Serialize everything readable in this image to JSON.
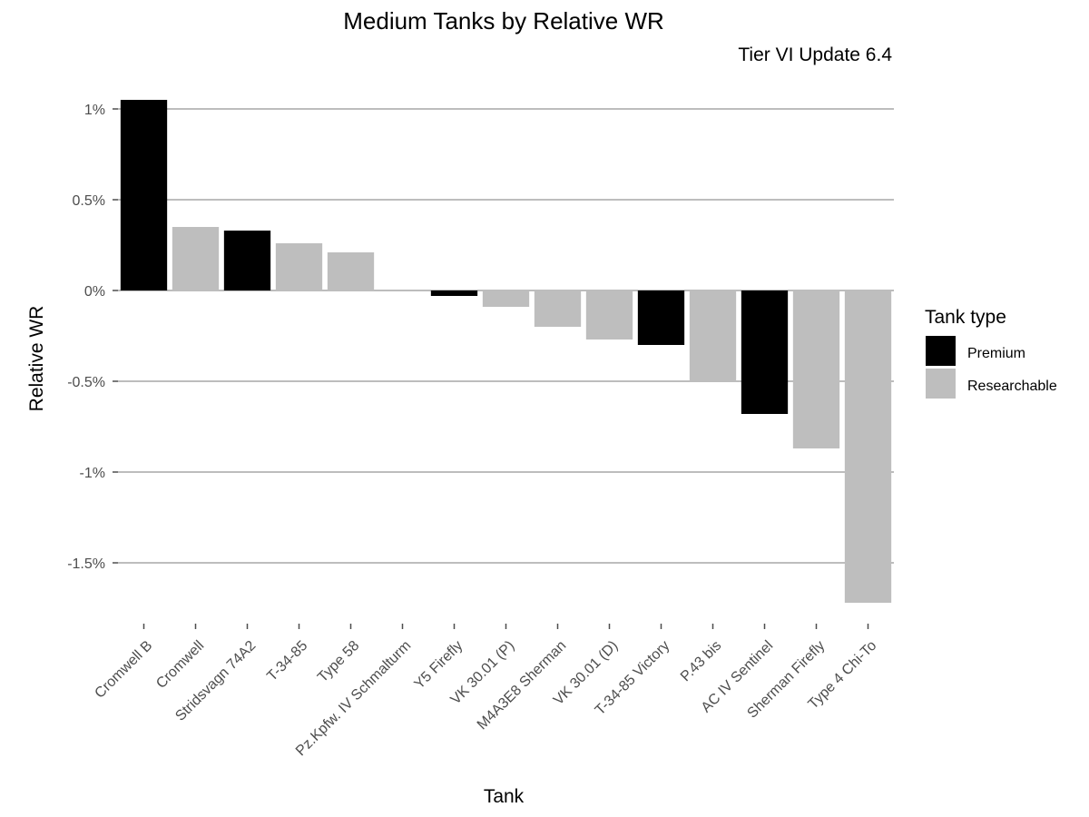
{
  "chart_data": {
    "type": "bar",
    "title": "Medium Tanks by Relative WR",
    "subtitle": "Tier VI Update 6.4",
    "xlabel": "Tank",
    "ylabel": "Relative WR",
    "ylim": [
      -1.8,
      1.1
    ],
    "yticks": [
      1,
      0.5,
      0,
      -0.5,
      -1,
      -1.5
    ],
    "ytick_labels": [
      "1%",
      "0.5%",
      "0%",
      "-0.5%",
      "-1%",
      "-1.5%"
    ],
    "grid": true,
    "legend": {
      "title": "Tank type",
      "placement": "right",
      "entries": [
        {
          "label": "Premium",
          "color": "#000000"
        },
        {
          "label": "Researchable",
          "color": "#bebebe"
        }
      ]
    },
    "categories": [
      "Cromwell B",
      "Cromwell",
      "Stridsvagn 74A2",
      "T-34-85",
      "Type 58",
      "Pz.Kpfw. IV Schmalturm",
      "Y5 Firefly",
      "VK 30.01 (P)",
      "M4A3E8 Sherman",
      "VK 30.01 (D)",
      "T-34-85 Victory",
      "P.43 bis",
      "AC IV Sentinel",
      "Sherman Firefly",
      "Type 4 Chi-To"
    ],
    "values": [
      1.05,
      0.35,
      0.33,
      0.26,
      0.21,
      0.0,
      -0.03,
      -0.09,
      -0.2,
      -0.27,
      -0.3,
      -0.5,
      -0.68,
      -0.87,
      -1.72
    ],
    "types": [
      "Premium",
      "Researchable",
      "Premium",
      "Researchable",
      "Researchable",
      "Researchable",
      "Premium",
      "Researchable",
      "Researchable",
      "Researchable",
      "Premium",
      "Researchable",
      "Premium",
      "Researchable",
      "Researchable"
    ]
  }
}
